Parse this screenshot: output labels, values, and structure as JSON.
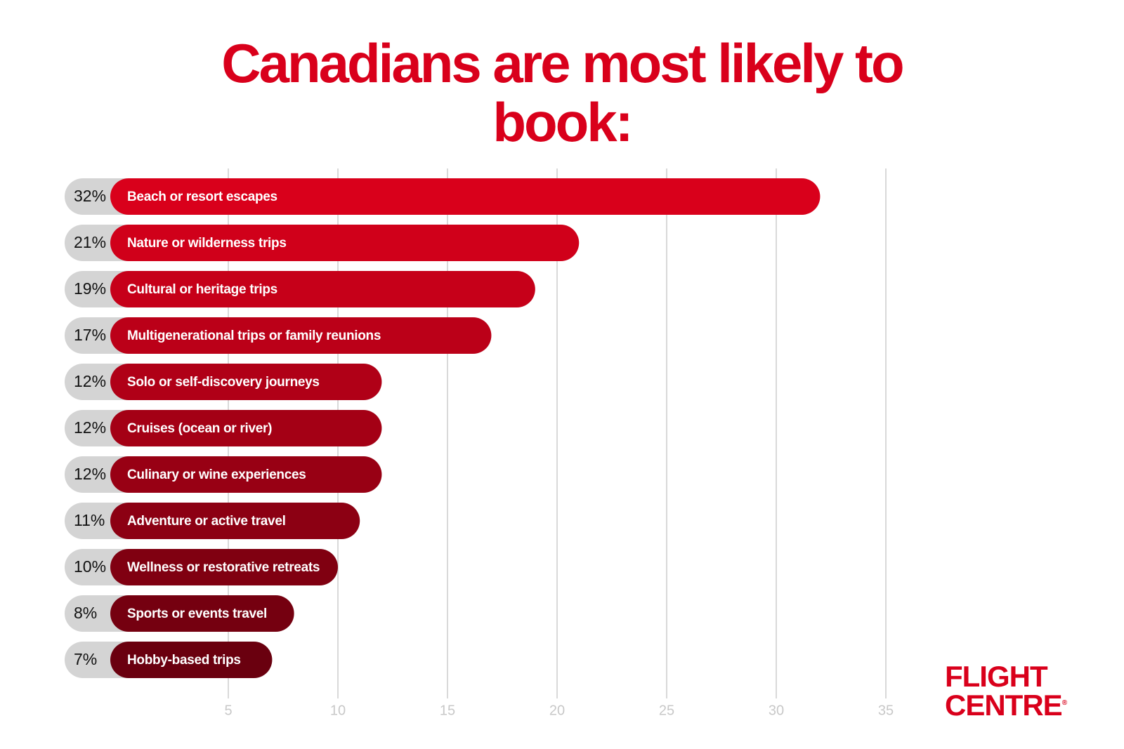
{
  "chart_data": {
    "type": "bar",
    "orientation": "horizontal",
    "title": "Canadians are most likely to book:",
    "categories": [
      "Beach or resort escapes",
      "Nature or wilderness trips",
      "Cultural or heritage trips",
      "Multigenerational trips or family reunions",
      "Solo or self-discovery journeys",
      "Cruises (ocean or river)",
      "Culinary or wine experiences",
      "Adventure or active travel",
      "Wellness or restorative retreats",
      "Sports or events travel",
      "Hobby-based trips"
    ],
    "values": [
      32,
      21,
      19,
      17,
      12,
      12,
      12,
      11,
      10,
      8,
      7
    ],
    "value_labels": [
      "32%",
      "21%",
      "19%",
      "17%",
      "12%",
      "12%",
      "12%",
      "11%",
      "10%",
      "8%",
      "7%"
    ],
    "colors": [
      "#d9001b",
      "#d0001a",
      "#c60019",
      "#bb0018",
      "#b00017",
      "#a40015",
      "#980014",
      "#8c0013",
      "#800011",
      "#750010",
      "#6a000f"
    ],
    "xlim": [
      0,
      35
    ],
    "xticks": [
      5,
      10,
      15,
      20,
      25,
      30,
      35
    ],
    "grid": true
  },
  "logo": {
    "line1": "FLIGHT",
    "line2": "CENTRE",
    "mark": "®"
  }
}
